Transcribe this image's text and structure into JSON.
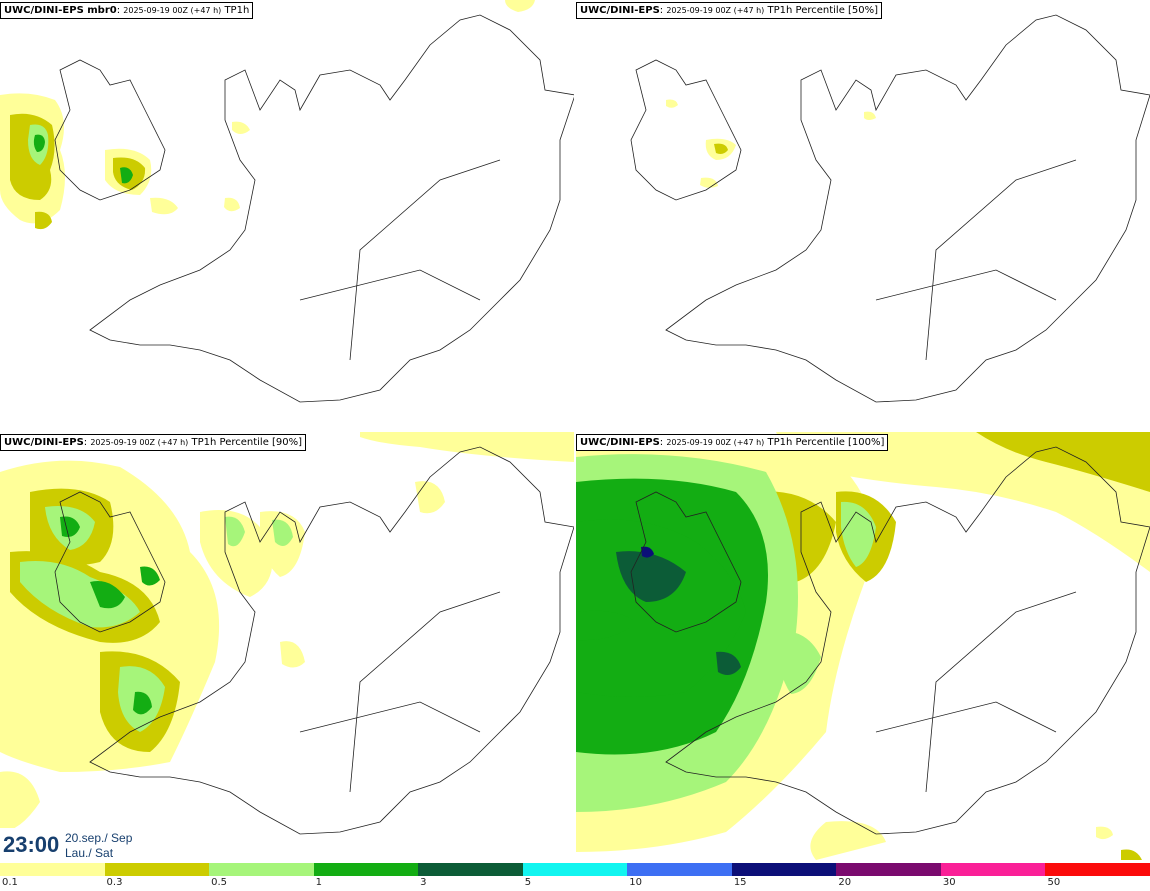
{
  "panels": [
    {
      "model": "UWC/DINI-EPS mbr0",
      "run": "2025-09-19 00Z (+47 h)",
      "param": "TP1h"
    },
    {
      "model": "UWC/DINI-EPS",
      "run": "2025-09-19 00Z (+47 h)",
      "param": "TP1h Percentile [50%]"
    },
    {
      "model": "UWC/DINI-EPS",
      "run": "2025-09-19 00Z (+47 h)",
      "param": "TP1h Percentile [90%]"
    },
    {
      "model": "UWC/DINI-EPS",
      "run": "2025-09-19 00Z (+47 h)",
      "param": "TP1h Percentile [100%]"
    }
  ],
  "valid_time": {
    "time": "23:00",
    "date": "20.sep./ Sep",
    "weekday": "Lau./ Sat"
  },
  "legend": {
    "colors": [
      "#ffff99",
      "#cccc00",
      "#a6f57a",
      "#13ad13",
      "#0c5c37",
      "#12f5f0",
      "#3d6ff3",
      "#0c0f78",
      "#7a0a6e",
      "#fa1f97",
      "#fb0b0b"
    ],
    "ticks": [
      "0.1",
      "0.3",
      "0.5",
      "1",
      "3",
      "5",
      "10",
      "15",
      "20",
      "30",
      "50"
    ]
  },
  "colors": {
    "coastline": "#222222",
    "time_text": "#173f6e"
  }
}
